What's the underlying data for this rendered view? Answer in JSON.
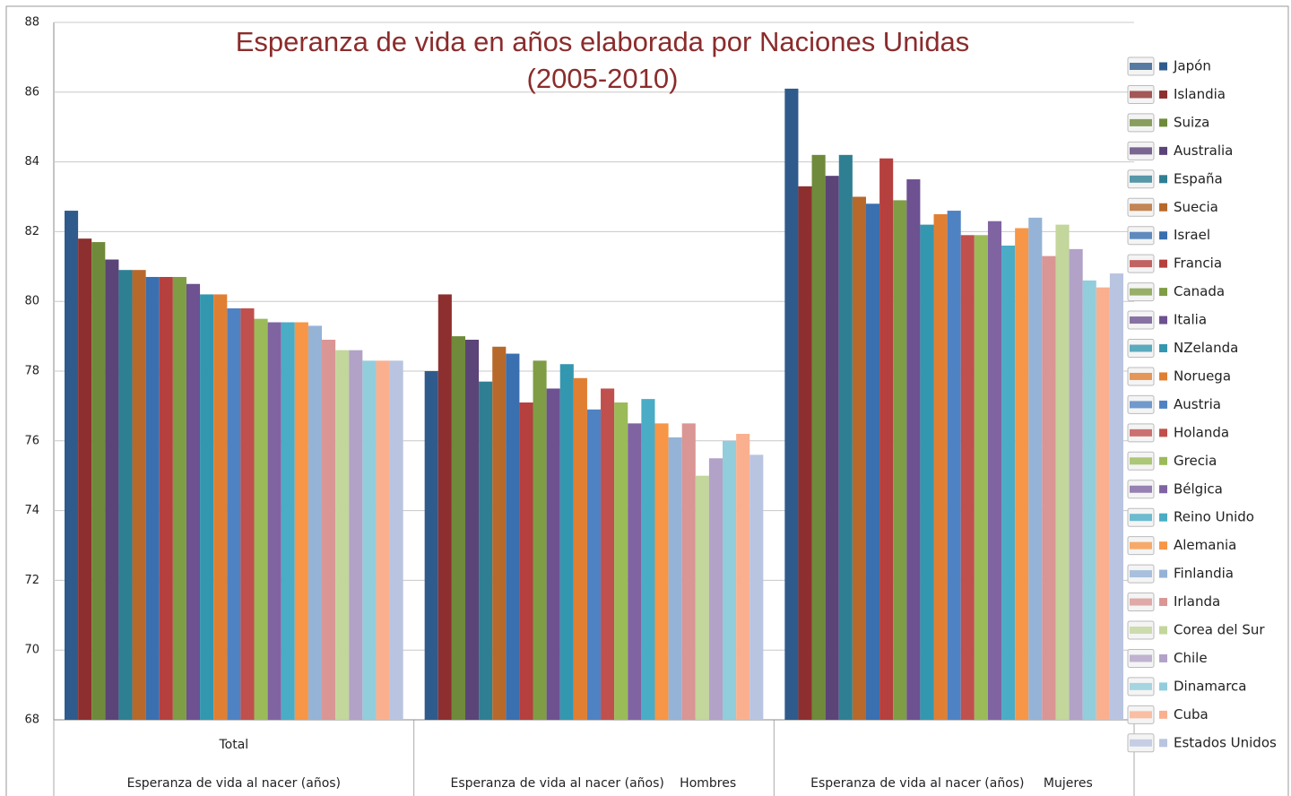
{
  "chart_data": {
    "type": "bar",
    "title": [
      "Esperanza de vida en años elaborada por Naciones Unidas",
      "(2005-2010)"
    ],
    "categories": [
      "Total",
      "Hombres",
      "Mujeres"
    ],
    "category_group_labels": [
      "Esperanza de vida al nacer (años)",
      "Esperanza de vida al nacer (años)",
      "Esperanza de vida al nacer (años)"
    ],
    "ylim": [
      68,
      88
    ],
    "yticks": [
      68,
      70,
      72,
      74,
      76,
      78,
      80,
      82,
      84,
      86,
      88
    ],
    "grid": true,
    "legend": "right",
    "series": [
      {
        "name": "Japón",
        "color": "#2f5b8c",
        "values": [
          82.6,
          78.0,
          86.1
        ]
      },
      {
        "name": "Islandia",
        "color": "#8e2f2f",
        "values": [
          81.8,
          80.2,
          83.3
        ]
      },
      {
        "name": "Suiza",
        "color": "#6f8a3a",
        "values": [
          81.7,
          79.0,
          84.2
        ]
      },
      {
        "name": "Australia",
        "color": "#5b4478",
        "values": [
          81.2,
          78.9,
          83.6
        ]
      },
      {
        "name": "España",
        "color": "#2f7f93",
        "values": [
          80.9,
          77.7,
          84.2
        ]
      },
      {
        "name": "Suecia",
        "color": "#b7692b",
        "values": [
          80.9,
          78.7,
          83.0
        ]
      },
      {
        "name": "Israel",
        "color": "#3a6fb0",
        "values": [
          80.7,
          78.5,
          82.8
        ]
      },
      {
        "name": "Francia",
        "color": "#b5403e",
        "values": [
          80.7,
          77.1,
          84.1
        ]
      },
      {
        "name": "Canada",
        "color": "#7f9d45",
        "values": [
          80.7,
          78.3,
          82.9
        ]
      },
      {
        "name": "Italia",
        "color": "#6d5190",
        "values": [
          80.5,
          77.5,
          83.5
        ]
      },
      {
        "name": "NZelanda",
        "color": "#3497b0",
        "values": [
          80.2,
          78.2,
          82.2
        ]
      },
      {
        "name": "Noruega",
        "color": "#e07f32",
        "values": [
          80.2,
          77.8,
          82.5
        ]
      },
      {
        "name": "Austria",
        "color": "#4f82c2",
        "values": [
          79.8,
          76.9,
          82.6
        ]
      },
      {
        "name": "Holanda",
        "color": "#c0504d",
        "values": [
          79.8,
          77.5,
          81.9
        ]
      },
      {
        "name": "Grecia",
        "color": "#9bbb59",
        "values": [
          79.5,
          77.1,
          81.9
        ]
      },
      {
        "name": "Bélgica",
        "color": "#8064a2",
        "values": [
          79.4,
          76.5,
          82.3
        ]
      },
      {
        "name": "Reino Unido",
        "color": "#4bacc6",
        "values": [
          79.4,
          77.2,
          81.6
        ]
      },
      {
        "name": "Alemania",
        "color": "#f79646",
        "values": [
          79.4,
          76.5,
          82.1
        ]
      },
      {
        "name": "Finlandia",
        "color": "#95b3d7",
        "values": [
          79.3,
          76.1,
          82.4
        ]
      },
      {
        "name": "Irlanda",
        "color": "#d99694",
        "values": [
          78.9,
          76.5,
          81.3
        ]
      },
      {
        "name": "Corea del Sur",
        "color": "#c3d69b",
        "values": [
          78.6,
          75.0,
          82.2
        ]
      },
      {
        "name": "Chile",
        "color": "#b2a2c7",
        "values": [
          78.6,
          75.5,
          81.5
        ]
      },
      {
        "name": "Dinamarca",
        "color": "#92cddc",
        "values": [
          78.3,
          76.0,
          80.6
        ]
      },
      {
        "name": "Cuba",
        "color": "#fab08f",
        "values": [
          78.3,
          76.2,
          80.4
        ]
      },
      {
        "name": "Estados Unidos",
        "color": "#b9c4e0",
        "values": [
          78.3,
          75.6,
          80.8
        ]
      }
    ]
  }
}
